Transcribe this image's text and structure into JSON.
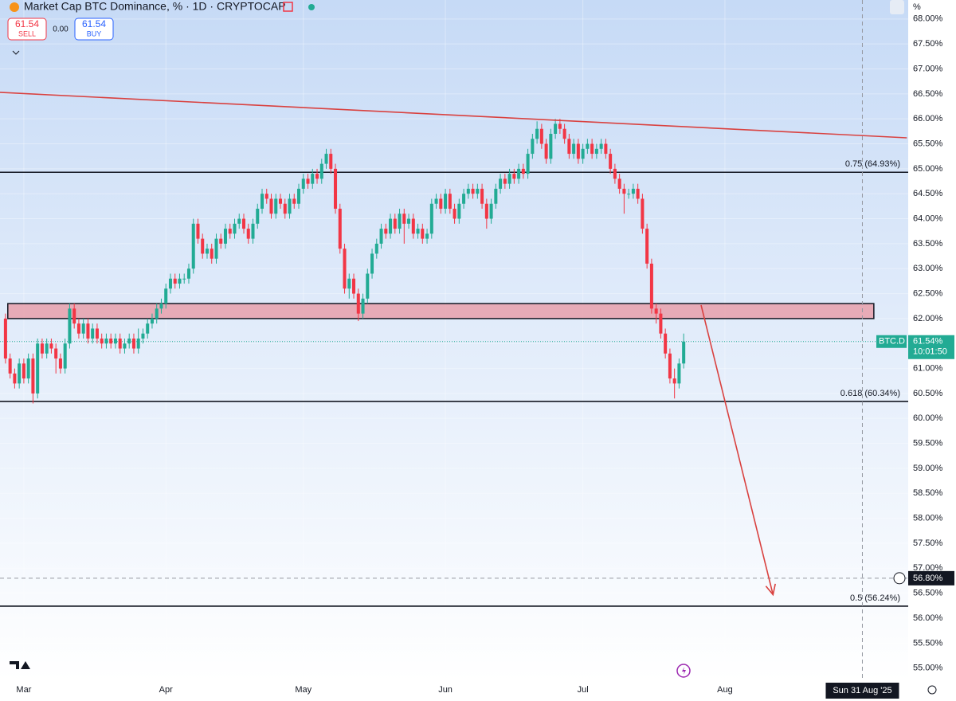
{
  "chart_data": {
    "type": "candlestick",
    "header": {
      "title": "Market Cap BTC Dominance, % · 1D · CRYPTOCAP",
      "sell": "61.54",
      "sell_label": "SELL",
      "spread": "0.00",
      "buy": "61.54",
      "buy_label": "BUY",
      "unit": "%"
    },
    "x": [
      -4,
      -3,
      -2,
      -1,
      0,
      1,
      2,
      3,
      4,
      5,
      6,
      7,
      8,
      9,
      10,
      11,
      12,
      13,
      14,
      15,
      16,
      17,
      18,
      19,
      20,
      21,
      22,
      23,
      24,
      25,
      26,
      27,
      28,
      29,
      30,
      31,
      32,
      33,
      34,
      35,
      36,
      37,
      38,
      39,
      40,
      41,
      42,
      43,
      44,
      45,
      46,
      47,
      48,
      49,
      50,
      51,
      52,
      53,
      54,
      55,
      56,
      57,
      58,
      59,
      60,
      61,
      62,
      63,
      64,
      65,
      66,
      67,
      68,
      69,
      70,
      71,
      72,
      73,
      74,
      75,
      76,
      77,
      78,
      79,
      80,
      81,
      82,
      83,
      84,
      85,
      86,
      87,
      88,
      89,
      90,
      91,
      92,
      93,
      94,
      95,
      96,
      97,
      98,
      99,
      100,
      101,
      102,
      103,
      104,
      105,
      106,
      107,
      108,
      109,
      110,
      111,
      112,
      113,
      114,
      115,
      116,
      117,
      118,
      119,
      120,
      121,
      122,
      123,
      124,
      125,
      126,
      127,
      128,
      129,
      130,
      131,
      132,
      133,
      134,
      135,
      136,
      137,
      138,
      139,
      140,
      141,
      142,
      143,
      144
    ],
    "open": [
      62.0,
      61.2,
      60.9,
      60.7,
      61.1,
      60.8,
      61.2,
      60.5,
      61.5,
      61.3,
      61.5,
      61.4,
      61.2,
      61.0,
      61.5,
      62.2,
      61.9,
      61.7,
      61.9,
      61.6,
      61.8,
      61.6,
      61.5,
      61.6,
      61.5,
      61.6,
      61.4,
      61.5,
      61.6,
      61.4,
      61.6,
      61.7,
      61.9,
      62.0,
      62.2,
      62.3,
      62.6,
      62.8,
      62.7,
      62.8,
      62.8,
      63.0,
      63.9,
      63.6,
      63.3,
      63.4,
      63.2,
      63.6,
      63.5,
      63.8,
      63.7,
      63.9,
      64.0,
      63.8,
      63.6,
      63.9,
      64.2,
      64.5,
      64.4,
      64.1,
      64.4,
      64.3,
      64.1,
      64.4,
      64.3,
      64.6,
      64.8,
      64.7,
      64.9,
      64.8,
      65.1,
      65.3,
      65.0,
      64.2,
      63.4,
      62.6,
      62.8,
      62.5,
      62.1,
      62.4,
      62.9,
      63.3,
      63.5,
      63.8,
      63.7,
      64.0,
      63.8,
      64.1,
      63.9,
      64.0,
      63.7,
      63.8,
      63.6,
      63.7,
      64.3,
      64.4,
      64.2,
      64.5,
      64.2,
      64.0,
      64.3,
      64.5,
      64.6,
      64.5,
      64.6,
      64.3,
      64.0,
      64.3,
      64.6,
      64.8,
      64.7,
      64.9,
      64.8,
      65.0,
      64.9,
      65.3,
      65.6,
      65.8,
      65.5,
      65.2,
      65.7,
      65.9,
      65.8,
      65.6,
      65.3,
      65.5,
      65.2,
      65.4,
      65.5,
      65.3,
      65.4,
      65.5,
      65.3,
      65.0,
      64.8,
      64.6,
      64.5,
      64.5,
      64.6,
      64.4,
      63.8,
      63.1,
      62.2,
      62.1,
      61.7,
      61.3,
      60.8,
      60.7,
      61.1
    ],
    "high": [
      62.1,
      61.3,
      61.0,
      61.2,
      61.2,
      61.3,
      61.3,
      61.6,
      61.6,
      61.6,
      61.6,
      61.5,
      61.3,
      61.6,
      62.3,
      62.3,
      62.0,
      62.0,
      62.0,
      61.9,
      61.9,
      61.7,
      61.7,
      61.7,
      61.7,
      61.7,
      61.6,
      61.7,
      61.7,
      61.8,
      61.8,
      62.0,
      62.1,
      62.3,
      62.4,
      62.7,
      62.9,
      62.9,
      62.9,
      62.9,
      63.1,
      64.0,
      64.0,
      63.7,
      63.5,
      63.5,
      63.7,
      63.7,
      63.9,
      63.9,
      64.0,
      64.1,
      64.1,
      63.9,
      64.0,
      64.3,
      64.6,
      64.6,
      64.5,
      64.5,
      64.5,
      64.4,
      64.5,
      64.5,
      64.7,
      64.9,
      64.9,
      65.0,
      65.0,
      65.2,
      65.4,
      65.4,
      65.1,
      64.3,
      63.5,
      62.9,
      62.9,
      62.6,
      62.5,
      63.0,
      63.4,
      63.6,
      63.9,
      63.9,
      64.1,
      64.1,
      64.2,
      64.2,
      64.1,
      64.1,
      63.9,
      63.9,
      63.8,
      64.4,
      64.5,
      64.5,
      64.6,
      64.6,
      64.3,
      64.4,
      64.6,
      64.7,
      64.7,
      64.7,
      64.7,
      64.4,
      64.4,
      64.7,
      64.9,
      64.9,
      65.0,
      65.0,
      65.1,
      65.1,
      65.4,
      65.7,
      65.95,
      65.9,
      65.6,
      65.8,
      66.0,
      66.0,
      65.9,
      65.7,
      65.6,
      65.6,
      65.5,
      65.6,
      65.6,
      65.5,
      65.6,
      65.6,
      65.4,
      65.1,
      64.9,
      64.7,
      64.6,
      64.7,
      64.7,
      64.5,
      63.9,
      63.2,
      62.3,
      62.2,
      61.8,
      61.4,
      61.0,
      61.2,
      61.7
    ],
    "low": [
      61.1,
      60.8,
      60.6,
      60.6,
      60.7,
      60.7,
      60.3,
      60.4,
      61.2,
      61.2,
      61.3,
      60.9,
      60.9,
      60.9,
      61.4,
      61.8,
      61.6,
      61.6,
      61.5,
      61.5,
      61.5,
      61.4,
      61.4,
      61.4,
      61.4,
      61.3,
      61.3,
      61.4,
      61.3,
      61.3,
      61.5,
      61.6,
      61.8,
      61.9,
      62.1,
      62.2,
      62.5,
      62.6,
      62.6,
      62.7,
      62.7,
      62.9,
      63.5,
      63.2,
      63.2,
      63.1,
      63.1,
      63.4,
      63.4,
      63.6,
      63.6,
      63.8,
      63.7,
      63.5,
      63.5,
      63.8,
      64.1,
      64.3,
      64.0,
      64.0,
      64.2,
      64.0,
      64.0,
      64.2,
      64.2,
      64.5,
      64.6,
      64.6,
      64.7,
      64.7,
      65.0,
      64.9,
      64.1,
      63.3,
      62.5,
      62.4,
      62.4,
      61.95,
      62.0,
      62.3,
      62.8,
      63.2,
      63.4,
      63.6,
      63.6,
      63.7,
      63.7,
      63.5,
      63.8,
      63.6,
      63.6,
      63.5,
      63.5,
      63.6,
      64.2,
      64.1,
      64.1,
      64.1,
      63.9,
      63.9,
      64.2,
      64.4,
      64.4,
      64.4,
      64.2,
      63.8,
      63.9,
      64.2,
      64.5,
      64.6,
      64.6,
      64.7,
      64.7,
      64.8,
      64.8,
      65.2,
      65.5,
      65.4,
      65.1,
      65.1,
      65.6,
      65.7,
      65.5,
      65.2,
      65.2,
      65.1,
      65.1,
      65.3,
      65.2,
      65.2,
      65.3,
      65.2,
      64.9,
      64.7,
      64.5,
      64.1,
      64.4,
      64.4,
      64.3,
      63.7,
      63.0,
      62.1,
      61.9,
      61.6,
      61.2,
      60.7,
      60.4,
      60.6,
      61.0
    ],
    "close": [
      61.2,
      60.9,
      60.7,
      61.1,
      60.8,
      61.2,
      60.5,
      61.5,
      61.3,
      61.5,
      61.4,
      61.2,
      61.0,
      61.5,
      62.2,
      61.9,
      61.7,
      61.9,
      61.6,
      61.8,
      61.6,
      61.5,
      61.6,
      61.5,
      61.6,
      61.4,
      61.5,
      61.6,
      61.4,
      61.6,
      61.7,
      61.9,
      62.0,
      62.2,
      62.3,
      62.6,
      62.8,
      62.7,
      62.8,
      62.8,
      63.0,
      63.9,
      63.6,
      63.3,
      63.4,
      63.2,
      63.6,
      63.5,
      63.8,
      63.7,
      63.9,
      64.0,
      63.8,
      63.6,
      63.9,
      64.2,
      64.5,
      64.4,
      64.1,
      64.4,
      64.3,
      64.1,
      64.4,
      64.3,
      64.6,
      64.8,
      64.7,
      64.9,
      64.8,
      65.1,
      65.3,
      65.0,
      64.2,
      63.4,
      62.6,
      62.8,
      62.5,
      62.1,
      62.4,
      62.9,
      63.3,
      63.5,
      63.8,
      63.7,
      64.0,
      63.8,
      64.1,
      63.9,
      64.0,
      63.7,
      63.8,
      63.6,
      63.7,
      64.3,
      64.4,
      64.2,
      64.5,
      64.2,
      64.0,
      64.3,
      64.5,
      64.6,
      64.5,
      64.6,
      64.3,
      64.0,
      64.3,
      64.6,
      64.8,
      64.7,
      64.9,
      64.8,
      65.0,
      64.9,
      65.3,
      65.6,
      65.8,
      65.5,
      65.2,
      65.7,
      65.9,
      65.8,
      65.6,
      65.3,
      65.5,
      65.2,
      65.4,
      65.5,
      65.3,
      65.4,
      65.5,
      65.3,
      65.0,
      64.8,
      64.6,
      64.5,
      64.5,
      64.6,
      64.4,
      63.8,
      63.1,
      62.2,
      62.1,
      61.7,
      61.3,
      60.8,
      60.7,
      61.1,
      61.54
    ],
    "up_color": "#22ab94",
    "down_color": "#f23645",
    "xlim": [
      -5.2,
      193
    ],
    "xticks": [
      {
        "value": 0,
        "label": "Mar"
      },
      {
        "value": 31,
        "label": "Apr"
      },
      {
        "value": 61,
        "label": "May"
      },
      {
        "value": 92,
        "label": "Jun"
      },
      {
        "value": 122,
        "label": "Jul"
      },
      {
        "value": 153,
        "label": "Aug"
      }
    ],
    "ylim": [
      54.74,
      68.38
    ],
    "yticks": [
      {
        "value": 55,
        "label": "55.00%"
      },
      {
        "value": 55.5,
        "label": "55.50%"
      },
      {
        "value": 56,
        "label": "56.00%"
      },
      {
        "value": 56.5,
        "label": "56.50%"
      },
      {
        "value": 57,
        "label": "57.00%"
      },
      {
        "value": 57.5,
        "label": "57.50%"
      },
      {
        "value": 58,
        "label": "58.00%"
      },
      {
        "value": 58.5,
        "label": "58.50%"
      },
      {
        "value": 59,
        "label": "59.00%"
      },
      {
        "value": 59.5,
        "label": "59.50%"
      },
      {
        "value": 60,
        "label": "60.00%"
      },
      {
        "value": 60.5,
        "label": "60.50%"
      },
      {
        "value": 61,
        "label": "61.00%"
      },
      {
        "value": 61.5,
        "label": "61.50%"
      },
      {
        "value": 62,
        "label": "62.00%"
      },
      {
        "value": 62.5,
        "label": "62.50%"
      },
      {
        "value": 63,
        "label": "63.00%"
      },
      {
        "value": 63.5,
        "label": "63.50%"
      },
      {
        "value": 64,
        "label": "64.00%"
      },
      {
        "value": 64.5,
        "label": "64.50%"
      },
      {
        "value": 65,
        "label": "65.00%"
      },
      {
        "value": 65.5,
        "label": "65.50%"
      },
      {
        "value": 66,
        "label": "66.00%"
      },
      {
        "value": 66.5,
        "label": "66.50%"
      },
      {
        "value": 67,
        "label": "67.00%"
      },
      {
        "value": 67.5,
        "label": "67.50%"
      },
      {
        "value": 68,
        "label": "68.00%"
      }
    ],
    "grid": true,
    "levels": [
      {
        "value": 64.93,
        "label": "0.75 (64.93%)"
      },
      {
        "value": 60.34,
        "label": "0.618 (60.34%)"
      },
      {
        "value": 56.24,
        "label": "0.5 (56.24%)"
      }
    ],
    "zone": {
      "x": [
        -3.5,
        185.5
      ],
      "y": [
        62.0,
        62.3
      ],
      "color": "#e8a0aa"
    },
    "trendline": {
      "x": [
        -5.2,
        192.7
      ],
      "y": [
        66.53,
        65.62
      ],
      "color": "#d9413f"
    },
    "arrow": {
      "x": [
        147.8,
        163.5
      ],
      "y": [
        62.27,
        56.47
      ],
      "color": "#d9413f"
    },
    "last_price": {
      "name": "BTC.D",
      "value": 61.54,
      "label": "61.54%",
      "countdown": "10:01:50"
    },
    "crosshair": {
      "value": 56.8,
      "label": "56.80%"
    },
    "crosshair_date": {
      "value": 183,
      "label": "Sun 31 Aug '25"
    }
  }
}
